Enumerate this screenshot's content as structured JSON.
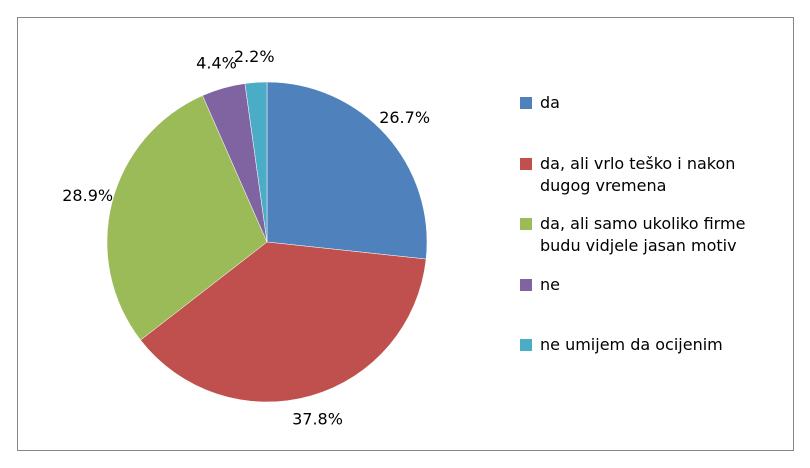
{
  "chart_data": {
    "type": "pie",
    "categories": [
      "da",
      "da, ali vrlo teško i nakon dugog vremena",
      "da, ali samo ukoliko firme budu vidjele jasan motiv",
      "ne",
      "ne umijem da ocijenim"
    ],
    "values": [
      26.7,
      37.8,
      28.9,
      4.4,
      2.2
    ],
    "value_labels": [
      "26.7%",
      "37.8%",
      "28.9%",
      "4.4%",
      "2.2%"
    ],
    "colors": [
      "#4f81bd",
      "#c0504d",
      "#9bbb59",
      "#8064a2",
      "#4bacc6"
    ],
    "legend": "right"
  }
}
